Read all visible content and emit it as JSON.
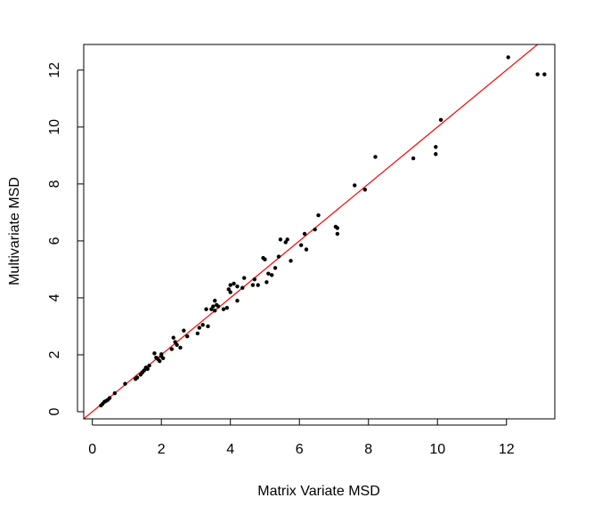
{
  "chart_data": {
    "type": "scatter",
    "title": "",
    "xlabel": "Matrix Variate MSD",
    "ylabel": "Multivariate MSD",
    "xlim": [
      -0.25,
      13.4
    ],
    "ylim": [
      -0.25,
      12.9
    ],
    "xticks": [
      0,
      2,
      4,
      6,
      8,
      10,
      12
    ],
    "yticks": [
      0,
      2,
      4,
      6,
      8,
      10,
      12
    ],
    "grid": false,
    "colors": {
      "points": "#000000",
      "reference_line": "#ff0000"
    },
    "reference_line": {
      "label": "",
      "intercept": 0,
      "slope": 1
    },
    "series": [
      {
        "name": "",
        "points": [
          [
            0.25,
            0.22
          ],
          [
            0.3,
            0.28
          ],
          [
            0.35,
            0.35
          ],
          [
            0.4,
            0.38
          ],
          [
            0.45,
            0.42
          ],
          [
            0.5,
            0.48
          ],
          [
            0.65,
            0.65
          ],
          [
            0.95,
            0.98
          ],
          [
            1.25,
            1.15
          ],
          [
            1.3,
            1.2
          ],
          [
            1.4,
            1.3
          ],
          [
            1.45,
            1.38
          ],
          [
            1.5,
            1.45
          ],
          [
            1.55,
            1.55
          ],
          [
            1.6,
            1.5
          ],
          [
            1.65,
            1.62
          ],
          [
            1.8,
            2.05
          ],
          [
            1.85,
            1.9
          ],
          [
            1.9,
            1.85
          ],
          [
            1.95,
            1.78
          ],
          [
            2.0,
            1.95
          ],
          [
            2.0,
            2.02
          ],
          [
            2.05,
            1.88
          ],
          [
            2.3,
            2.2
          ],
          [
            2.35,
            2.6
          ],
          [
            2.4,
            2.45
          ],
          [
            2.45,
            2.35
          ],
          [
            2.55,
            2.25
          ],
          [
            2.65,
            2.85
          ],
          [
            2.75,
            2.65
          ],
          [
            3.05,
            2.75
          ],
          [
            3.1,
            2.95
          ],
          [
            3.2,
            3.05
          ],
          [
            3.3,
            3.6
          ],
          [
            3.35,
            3.0
          ],
          [
            3.45,
            3.6
          ],
          [
            3.5,
            3.7
          ],
          [
            3.55,
            3.55
          ],
          [
            3.55,
            3.9
          ],
          [
            3.6,
            3.75
          ],
          [
            3.65,
            3.7
          ],
          [
            3.8,
            3.6
          ],
          [
            3.9,
            3.65
          ],
          [
            3.95,
            4.3
          ],
          [
            4.0,
            4.2
          ],
          [
            4.0,
            4.45
          ],
          [
            4.1,
            4.5
          ],
          [
            4.2,
            3.9
          ],
          [
            4.2,
            4.4
          ],
          [
            4.35,
            4.35
          ],
          [
            4.4,
            4.7
          ],
          [
            4.65,
            4.45
          ],
          [
            4.7,
            4.65
          ],
          [
            4.8,
            4.45
          ],
          [
            4.95,
            5.4
          ],
          [
            5.0,
            5.35
          ],
          [
            5.05,
            4.55
          ],
          [
            5.1,
            4.85
          ],
          [
            5.2,
            4.8
          ],
          [
            5.3,
            5.05
          ],
          [
            5.4,
            5.45
          ],
          [
            5.45,
            6.05
          ],
          [
            5.6,
            5.95
          ],
          [
            5.65,
            6.05
          ],
          [
            5.75,
            5.3
          ],
          [
            6.05,
            5.85
          ],
          [
            6.15,
            6.25
          ],
          [
            6.2,
            5.7
          ],
          [
            6.45,
            6.4
          ],
          [
            6.55,
            6.9
          ],
          [
            7.05,
            6.5
          ],
          [
            7.1,
            6.25
          ],
          [
            7.1,
            6.45
          ],
          [
            7.6,
            7.95
          ],
          [
            7.9,
            7.8
          ],
          [
            8.2,
            8.95
          ],
          [
            9.3,
            8.9
          ],
          [
            9.95,
            9.3
          ],
          [
            9.95,
            9.05
          ],
          [
            10.1,
            10.25
          ],
          [
            12.05,
            12.45
          ],
          [
            12.9,
            11.85
          ],
          [
            13.1,
            11.85
          ]
        ]
      }
    ]
  }
}
